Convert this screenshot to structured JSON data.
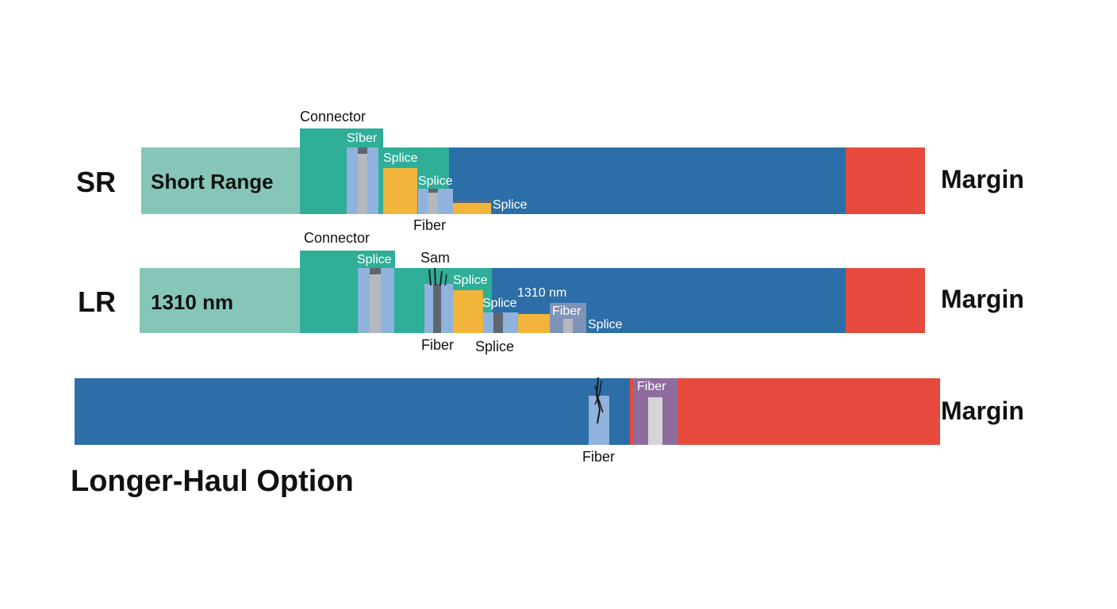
{
  "colors": {
    "light_teal": "#86c6b8",
    "connector_teal": "#2fae98",
    "main_blue": "#2b6ea8",
    "margin_red": "#e64a3d",
    "splice_yellow": "#f2b43a",
    "fiber_lightblue": "#8fb3dc",
    "fiber_gray": "#b5b8bf",
    "dark_gray": "#5f6670",
    "purple": "#8e6c9e"
  },
  "sr": {
    "code": "SR",
    "range_label": "Short Range",
    "connector_label": "Connector",
    "fiber_label": "Sîber",
    "splice_1": "Splice",
    "splice_2": "Splice",
    "splice_3": "Splice",
    "fiber_below": "Fiber",
    "margin_label": "Margin"
  },
  "lr": {
    "code": "LR",
    "range_label": "1310 nm",
    "connector_label": "Connector",
    "splice_1": "Splice",
    "sam_label": "Sam",
    "splice_2": "Splice",
    "splice_3": "Splice",
    "nm_label": "1310 nm",
    "fiber_box_label": "Fiber",
    "splice_4": "Splice",
    "fiber_below": "Fiber",
    "splice_below": "Splice",
    "margin_label": "Margin"
  },
  "longhaul": {
    "fiber_box_label": "Fiber",
    "fiber_below": "Fiber",
    "margin_label": "Margin",
    "title": "Longer-Haul Option"
  }
}
